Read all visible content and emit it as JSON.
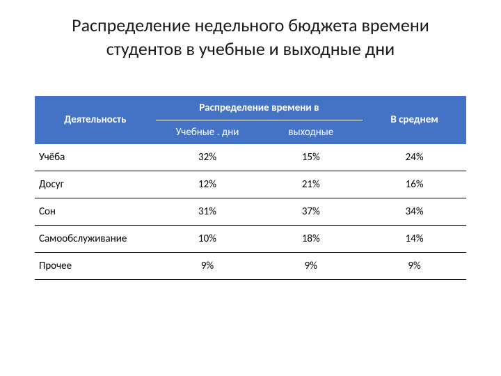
{
  "slide": {
    "title": "Распределение недельного бюджета времени студентов в учебные и выходные дни",
    "table": {
      "header_bg": "#4472c4",
      "header_fg": "#ffffff",
      "row_border": "#000000",
      "title_fontsize": 26,
      "cell_fontsize": 15,
      "columns": {
        "activity": "Деятельность",
        "distribution": "Распределение времени в",
        "study_days": "Учебные . дни",
        "weekend": "выходные",
        "average": "В среднем"
      },
      "rows": [
        {
          "activity": "Учёба",
          "study": "32%",
          "weekend": "15%",
          "avg": "24%"
        },
        {
          "activity": "Досуг",
          "study": "12%",
          "weekend": "21%",
          "avg": "16%"
        },
        {
          "activity": "Сон",
          "study": "31%",
          "weekend": "37%",
          "avg": "34%"
        },
        {
          "activity": "Самообслуживание",
          "study": "10%",
          "weekend": "18%",
          "avg": "14%"
        },
        {
          "activity": "Прочее",
          "study": "9%",
          "weekend": "9%",
          "avg": "9%"
        }
      ]
    }
  }
}
